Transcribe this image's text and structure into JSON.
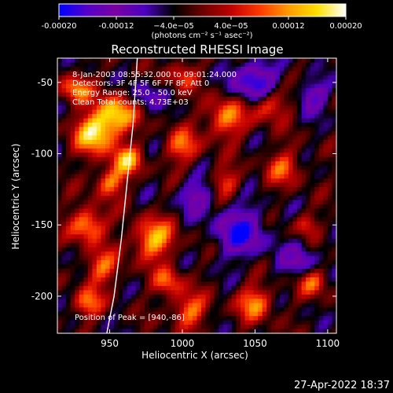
{
  "chart_data": {
    "type": "heatmap",
    "title": "Reconstructed RHESSI Image",
    "xlabel": "Heliocentric X (arcsec)",
    "ylabel": "Heliocentric Y (arcsec)",
    "xlim": [
      914,
      1106
    ],
    "ylim": [
      -226,
      -33
    ],
    "x_ticks": [
      950,
      1000,
      1050,
      1100
    ],
    "y_ticks": [
      -50,
      -100,
      -150,
      -200
    ],
    "colorbar": {
      "range": [
        -0.0002,
        0.0002
      ],
      "tick_values": [
        -0.0002,
        -0.00012,
        -4e-05,
        4e-05,
        0.00012,
        0.0002
      ],
      "tick_labels": [
        "-0.00020",
        "-0.00012",
        "−4.0e−05",
        "4.0e−05",
        "0.00012",
        "0.00020"
      ],
      "unit_label": "(photons cm⁻² s⁻¹ asec⁻²)",
      "colormap": [
        "#0000ff",
        "#5500c8",
        "#7a00a0",
        "#4a00c0",
        "#000000",
        "#6b0000",
        "#c00000",
        "#ff3800",
        "#ff9a00",
        "#ffe000",
        "#ffffff"
      ]
    },
    "annotations": [
      "8-Jan-2003 08:55:32.000 to 09:01:24.000",
      "Detectors: 3F 4F 5F 6F 7F 8F, Att 0",
      "Energy Range: 25.0 - 50.0 keV",
      "Clean     Total counts: 4.73E+03"
    ],
    "peak_label": "Position of Peak = [940,-86]",
    "peak": [
      940,
      -86
    ],
    "limb_curve": [
      [
        969,
        -33
      ],
      [
        966,
        -80
      ],
      [
        962,
        -120
      ],
      [
        958,
        -160
      ],
      [
        953,
        -200
      ],
      [
        948,
        -226
      ]
    ],
    "hot_regions": [
      {
        "x": 940,
        "y": -86,
        "r": 14,
        "v": 0.0002
      },
      {
        "x": 955,
        "y": -72,
        "r": 13,
        "v": 0.00018
      },
      {
        "x": 927,
        "y": -55,
        "r": 10,
        "v": 0.00015
      },
      {
        "x": 962,
        "y": -105,
        "r": 10,
        "v": 0.00016
      },
      {
        "x": 950,
        "y": -120,
        "r": 10,
        "v": 0.00014
      },
      {
        "x": 935,
        "y": -150,
        "r": 12,
        "v": 0.00016
      },
      {
        "x": 945,
        "y": -180,
        "r": 12,
        "v": 0.00012
      },
      {
        "x": 935,
        "y": -205,
        "r": 10,
        "v": 0.00013
      },
      {
        "x": 980,
        "y": -160,
        "r": 14,
        "v": 0.00017
      },
      {
        "x": 990,
        "y": -190,
        "r": 10,
        "v": 0.00012
      },
      {
        "x": 1005,
        "y": -210,
        "r": 12,
        "v": 0.00013
      },
      {
        "x": 1000,
        "y": -95,
        "r": 12,
        "v": 0.00012
      },
      {
        "x": 1030,
        "y": -75,
        "r": 14,
        "v": 0.00014
      },
      {
        "x": 1030,
        "y": -120,
        "r": 10,
        "v": 0.0001
      },
      {
        "x": 1060,
        "y": -65,
        "r": 12,
        "v": 0.00013
      },
      {
        "x": 1070,
        "y": -110,
        "r": 12,
        "v": 0.00011
      },
      {
        "x": 1050,
        "y": -205,
        "r": 12,
        "v": 0.00014
      },
      {
        "x": 1090,
        "y": -190,
        "r": 10,
        "v": 0.00012
      },
      {
        "x": 1000,
        "y": -45,
        "r": 10,
        "v": 0.0001
      },
      {
        "x": 1085,
        "y": -150,
        "r": 8,
        "v": 9e-05
      }
    ],
    "cold_regions": [
      {
        "x": 1050,
        "y": -50,
        "r": 14,
        "v": -0.00018
      },
      {
        "x": 1040,
        "y": -155,
        "r": 16,
        "v": -0.00016
      },
      {
        "x": 1090,
        "y": -60,
        "r": 10,
        "v": -0.00012
      },
      {
        "x": 1010,
        "y": -130,
        "r": 12,
        "v": -0.0001
      },
      {
        "x": 1080,
        "y": -175,
        "r": 12,
        "v": -0.0001
      },
      {
        "x": 975,
        "y": -60,
        "r": 10,
        "v": -8e-05
      }
    ]
  },
  "footer_timestamp": "27-Apr-2022 18:37"
}
